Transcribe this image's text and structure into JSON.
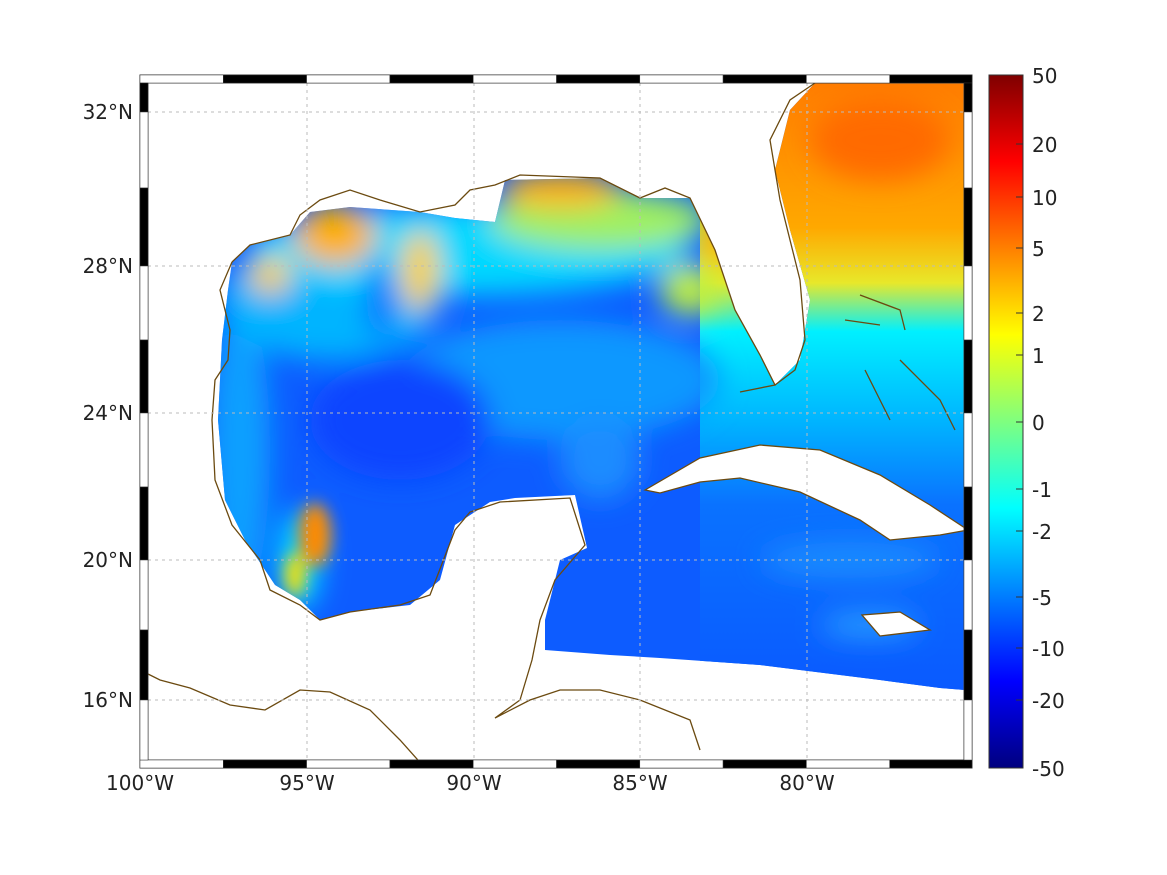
{
  "map": {
    "x_ticks": [
      "100°W",
      "95°W",
      "90°W",
      "85°W",
      "80°W"
    ],
    "y_ticks": [
      "32°N",
      "28°N",
      "24°N",
      "20°N",
      "16°N"
    ],
    "coast_color": "#6b4a10"
  },
  "colorbar": {
    "ticks": [
      "50",
      "20",
      "10",
      "5",
      "2",
      "1",
      "0",
      "-1",
      "-2",
      "-5",
      "-10",
      "-20",
      "-50"
    ],
    "colormap": "jet"
  }
}
